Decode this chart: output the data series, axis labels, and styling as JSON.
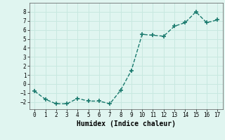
{
  "x": [
    0,
    1,
    2,
    3,
    4,
    5,
    6,
    7,
    8,
    9,
    10,
    11,
    12,
    13,
    14,
    15,
    16,
    17
  ],
  "y": [
    -0.8,
    -1.7,
    -2.2,
    -2.2,
    -1.6,
    -1.9,
    -1.9,
    -2.2,
    -0.7,
    1.5,
    5.5,
    5.4,
    5.3,
    6.4,
    6.8,
    8.0,
    6.8,
    7.1
  ],
  "line_color": "#1a7a6e",
  "marker": "+",
  "marker_size": 4,
  "marker_lw": 1.2,
  "line_width": 1.0,
  "bg_color": "#e0f5f0",
  "grid_color": "#c8e8e0",
  "xlabel": "Humidex (Indice chaleur)",
  "xlim": [
    -0.5,
    17.5
  ],
  "ylim": [
    -2.8,
    9.0
  ],
  "yticks": [
    -2,
    -1,
    0,
    1,
    2,
    3,
    4,
    5,
    6,
    7,
    8
  ],
  "xticks": [
    0,
    1,
    2,
    3,
    4,
    5,
    6,
    7,
    8,
    9,
    10,
    11,
    12,
    13,
    14,
    15,
    16,
    17
  ],
  "tick_fontsize": 5.5,
  "xlabel_fontsize": 7
}
